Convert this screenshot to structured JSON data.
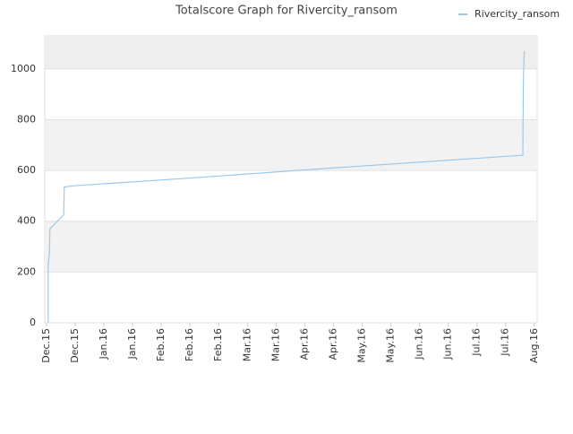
{
  "chart_data": {
    "type": "line",
    "title": "Totalscore Graph for Rivercity_ransom",
    "x": [
      0.06,
      0.06,
      0.1,
      0.12,
      0.6,
      0.62,
      1.0,
      5.0,
      10.0,
      16.6,
      16.6,
      16.62,
      16.65
    ],
    "series": [
      {
        "name": "Rivercity_ransom",
        "color": "#99c9ee",
        "values": [
          0,
          230,
          270,
          370,
          425,
          535,
          540,
          570,
          610,
          660,
          665,
          960,
          1070
        ]
      }
    ],
    "xlim": [
      -0.06,
      17.1
    ],
    "xticks": [
      {
        "value": 0,
        "label": "Dec.15"
      },
      {
        "value": 1,
        "label": "Dec.15"
      },
      {
        "value": 2,
        "label": "Jan.16"
      },
      {
        "value": 3,
        "label": "Jan.16"
      },
      {
        "value": 4,
        "label": "Feb.16"
      },
      {
        "value": 5,
        "label": "Feb.16"
      },
      {
        "value": 6,
        "label": "Feb.16"
      },
      {
        "value": 7,
        "label": "Mar.16"
      },
      {
        "value": 8,
        "label": "Mar.16"
      },
      {
        "value": 9,
        "label": "Apr.16"
      },
      {
        "value": 10,
        "label": "Apr.16"
      },
      {
        "value": 11,
        "label": "May.16"
      },
      {
        "value": 12,
        "label": "May.16"
      },
      {
        "value": 13,
        "label": "Jun.16"
      },
      {
        "value": 14,
        "label": "Jun.16"
      },
      {
        "value": 15,
        "label": "Jul.16"
      },
      {
        "value": 16,
        "label": "Jul.16"
      },
      {
        "value": 17,
        "label": "Aug.16"
      }
    ],
    "ylim": [
      0,
      1130
    ],
    "yticks": [
      0,
      200,
      400,
      600,
      800,
      1000
    ],
    "grid": true,
    "legend": "top-right"
  }
}
